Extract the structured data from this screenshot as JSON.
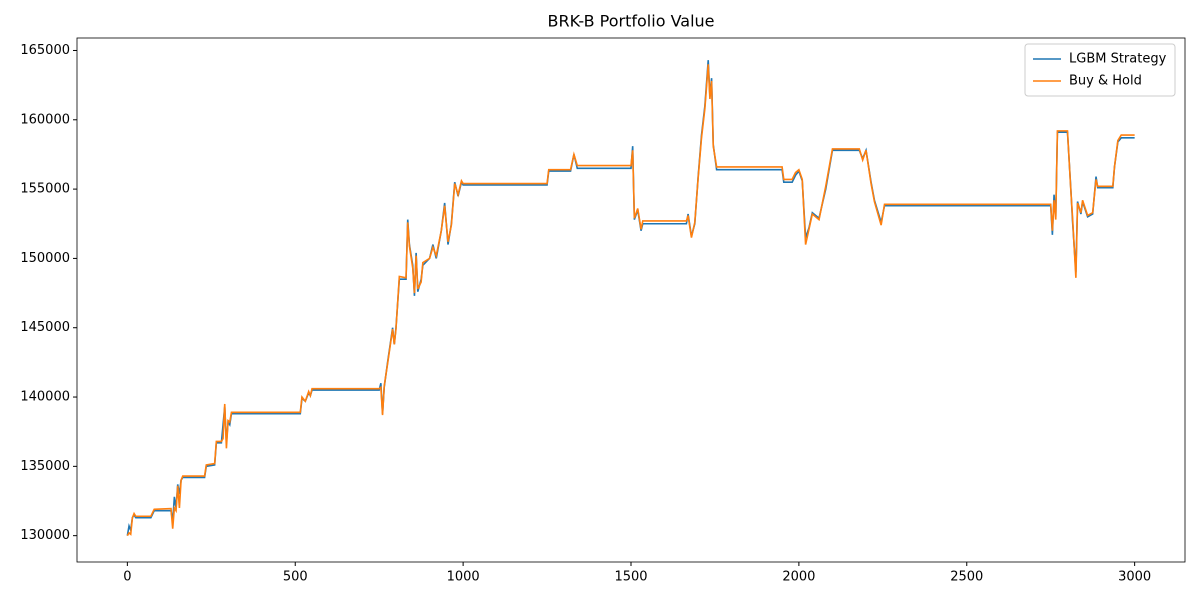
{
  "chart_data": {
    "type": "line",
    "title": "BRK-B Portfolio Value",
    "x": [
      0,
      5,
      10,
      15,
      20,
      25,
      70,
      80,
      130,
      135,
      140,
      145,
      150,
      155,
      160,
      165,
      230,
      235,
      260,
      265,
      280,
      285,
      290,
      295,
      300,
      305,
      310,
      515,
      520,
      530,
      540,
      545,
      550,
      750,
      755,
      760,
      765,
      775,
      790,
      795,
      800,
      810,
      830,
      835,
      840,
      850,
      855,
      860,
      865,
      875,
      880,
      900,
      910,
      920,
      935,
      945,
      955,
      965,
      975,
      985,
      995,
      1000,
      1250,
      1255,
      1320,
      1330,
      1340,
      1500,
      1505,
      1510,
      1520,
      1530,
      1535,
      1665,
      1670,
      1680,
      1690,
      1700,
      1710,
      1720,
      1730,
      1735,
      1740,
      1745,
      1755,
      1950,
      1955,
      1980,
      1990,
      2000,
      2010,
      2020,
      2030,
      2040,
      2060,
      2080,
      2100,
      2180,
      2190,
      2200,
      2215,
      2225,
      2245,
      2255,
      2750,
      2755,
      2760,
      2765,
      2770,
      2800,
      2810,
      2815,
      2825,
      2830,
      2840,
      2845,
      2860,
      2875,
      2885,
      2890,
      2935,
      2940,
      2950,
      2960,
      3000
    ],
    "series": [
      {
        "name": "LGBM Strategy",
        "color": "#1f77b4",
        "values": [
          130000,
          130700,
          130400,
          131300,
          131500,
          131300,
          131300,
          131800,
          131800,
          131000,
          132800,
          132000,
          133700,
          133000,
          134000,
          134200,
          134200,
          135000,
          135100,
          136700,
          136700,
          138000,
          139300,
          136700,
          138200,
          138000,
          138800,
          138800,
          139900,
          139700,
          140300,
          140100,
          140500,
          140500,
          141000,
          138800,
          140700,
          142500,
          145000,
          143800,
          145000,
          148500,
          148500,
          152800,
          151000,
          149500,
          147300,
          150400,
          147600,
          148500,
          149500,
          150000,
          151000,
          150000,
          152000,
          154000,
          151000,
          152500,
          155500,
          154500,
          155500,
          155300,
          155300,
          156300,
          156300,
          157500,
          156500,
          156500,
          158100,
          152800,
          153500,
          152000,
          152500,
          152500,
          153200,
          151600,
          152500,
          155900,
          158900,
          161000,
          164300,
          161700,
          163000,
          158200,
          156400,
          156400,
          155500,
          155500,
          156000,
          156300,
          155600,
          151500,
          152200,
          153300,
          152900,
          155000,
          157800,
          157800,
          157200,
          157800,
          155500,
          154200,
          152600,
          153800,
          153800,
          151700,
          154600,
          153000,
          159100,
          159100,
          155000,
          152700,
          149000,
          154100,
          153200,
          154100,
          153000,
          153200,
          155900,
          155100,
          155100,
          156600,
          158400,
          158700,
          158700
        ]
      },
      {
        "name": "Buy & Hold",
        "color": "#ff7f0e",
        "values": [
          130000,
          130200,
          130100,
          131300,
          131600,
          131400,
          131400,
          131900,
          131950,
          130500,
          132000,
          131800,
          133600,
          132000,
          134000,
          134300,
          134300,
          135100,
          135200,
          136800,
          136800,
          137000,
          139500,
          136300,
          138300,
          138200,
          138900,
          138900,
          140000,
          139700,
          140400,
          140100,
          140600,
          140600,
          140700,
          138700,
          140800,
          142400,
          144900,
          143800,
          144900,
          148700,
          148600,
          152600,
          150900,
          149300,
          147500,
          150200,
          147800,
          148300,
          149700,
          150000,
          150800,
          150200,
          152000,
          153800,
          151200,
          152400,
          155400,
          154600,
          155600,
          155400,
          155400,
          156400,
          156400,
          157500,
          156700,
          156700,
          157800,
          152900,
          153600,
          152100,
          152700,
          152700,
          153100,
          151500,
          152600,
          155800,
          158700,
          160800,
          164000,
          161500,
          162800,
          158100,
          156600,
          156600,
          155700,
          155700,
          156200,
          156400,
          155700,
          151000,
          152100,
          153200,
          152800,
          155200,
          157900,
          157900,
          157100,
          157800,
          155400,
          154100,
          152400,
          153900,
          153900,
          152000,
          154200,
          152800,
          159200,
          159200,
          154900,
          153000,
          148600,
          154000,
          153300,
          154200,
          153100,
          153300,
          155700,
          155200,
          155200,
          156600,
          158500,
          158900,
          158900
        ]
      }
    ],
    "xlim": [
      -150,
      3150
    ],
    "ylim": [
      128100,
      165900
    ],
    "xticks": [
      0,
      500,
      1000,
      1500,
      2000,
      2500,
      3000
    ],
    "yticks": [
      130000,
      135000,
      140000,
      145000,
      150000,
      155000,
      160000,
      165000
    ],
    "legend": "upper right"
  }
}
